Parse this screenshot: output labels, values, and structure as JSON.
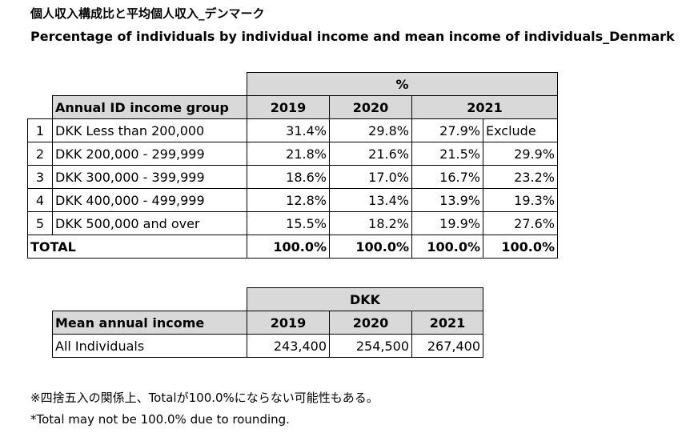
{
  "title_jp": "個人収入構成比と平均個人収入_デンマーク",
  "title_en": "Percentage of individuals by individual income and mean income of individuals_Denmark",
  "income_table": {
    "unit": "%",
    "group_header": "Annual ID income group",
    "years": [
      "2019",
      "2020",
      "2021"
    ],
    "rows": [
      {
        "idx": "1",
        "label": "DKK Less than 200,000",
        "v2019": "31.4%",
        "v2020": "29.8%",
        "v2021": "27.9%",
        "v2021_excl": "Exclude"
      },
      {
        "idx": "2",
        "label": "DKK 200,000 - 299,999",
        "v2019": "21.8%",
        "v2020": "21.6%",
        "v2021": "21.5%",
        "v2021_excl": "29.9%"
      },
      {
        "idx": "3",
        "label": "DKK 300,000 - 399,999",
        "v2019": "18.6%",
        "v2020": "17.0%",
        "v2021": "16.7%",
        "v2021_excl": "23.2%"
      },
      {
        "idx": "4",
        "label": "DKK 400,000 - 499,999",
        "v2019": "12.8%",
        "v2020": "13.4%",
        "v2021": "13.9%",
        "v2021_excl": "19.3%"
      },
      {
        "idx": "5",
        "label": "DKK 500,000 and over",
        "v2019": "15.5%",
        "v2020": "18.2%",
        "v2021": "19.9%",
        "v2021_excl": "27.6%"
      }
    ],
    "total": {
      "label": "TOTAL",
      "v2019": "100.0%",
      "v2020": "100.0%",
      "v2021": "100.0%",
      "v2021_excl": "100.0%"
    }
  },
  "mean_table": {
    "unit": "DKK",
    "header": "Mean annual income",
    "years": [
      "2019",
      "2020",
      "2021"
    ],
    "row": {
      "label": "All Individuals",
      "v2019": "243,400",
      "v2020": "254,500",
      "v2021": "267,400"
    }
  },
  "note_jp": "※四捨五入の関係上、Totalが100.0%にならない可能性もある。",
  "note_en": "*Total may not be 100.0% due to rounding."
}
